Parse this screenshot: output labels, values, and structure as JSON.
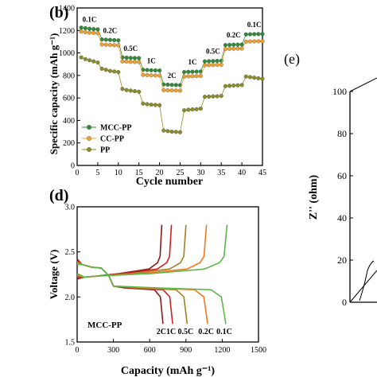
{
  "panels": {
    "b": {
      "label": "(b)"
    },
    "d": {
      "label": "(d)"
    },
    "e": {
      "label": "(e)"
    }
  },
  "chart_data": [
    {
      "type": "scatter",
      "panel": "(b)",
      "xlabel": "Cycle number",
      "ylabel": "Specific capacity (mAh g⁻¹)",
      "xlim": [
        0,
        45
      ],
      "ylim": [
        0,
        1400
      ],
      "xticks": [
        0,
        5,
        10,
        15,
        20,
        25,
        30,
        35,
        40,
        45
      ],
      "yticks": [
        0,
        200,
        400,
        600,
        800,
        1000,
        1200,
        1400
      ],
      "x": [
        1,
        2,
        3,
        4,
        5,
        6,
        7,
        8,
        9,
        10,
        11,
        12,
        13,
        14,
        15,
        16,
        17,
        18,
        19,
        20,
        21,
        22,
        23,
        24,
        25,
        26,
        27,
        28,
        29,
        30,
        31,
        32,
        33,
        34,
        35,
        36,
        37,
        38,
        39,
        40,
        41,
        42,
        43,
        44,
        45
      ],
      "series": [
        {
          "name": "MCC-PP",
          "color": "#2e8b3a",
          "values": [
            1225,
            1220,
            1215,
            1212,
            1210,
            1120,
            1118,
            1116,
            1114,
            1112,
            960,
            958,
            956,
            955,
            954,
            850,
            848,
            846,
            845,
            844,
            720,
            718,
            716,
            715,
            714,
            830,
            832,
            833,
            834,
            835,
            925,
            927,
            928,
            929,
            930,
            1070,
            1072,
            1073,
            1074,
            1075,
            1165,
            1166,
            1167,
            1168,
            1168
          ]
        },
        {
          "name": "CC-PP",
          "color": "#f0a030",
          "values": [
            1190,
            1185,
            1180,
            1178,
            1175,
            1075,
            1073,
            1071,
            1069,
            1068,
            925,
            923,
            921,
            920,
            919,
            805,
            803,
            801,
            800,
            799,
            670,
            668,
            667,
            666,
            665,
            790,
            792,
            793,
            794,
            795,
            890,
            892,
            893,
            894,
            895,
            1035,
            1037,
            1038,
            1039,
            1040,
            1100,
            1102,
            1103,
            1104,
            1105
          ]
        },
        {
          "name": "PP",
          "color": "#8b8b2a",
          "values": [
            960,
            945,
            935,
            925,
            915,
            860,
            850,
            840,
            835,
            830,
            680,
            670,
            665,
            660,
            655,
            550,
            545,
            540,
            538,
            535,
            310,
            305,
            300,
            298,
            295,
            490,
            495,
            498,
            500,
            505,
            610,
            612,
            614,
            615,
            618,
            705,
            708,
            710,
            712,
            715,
            790,
            785,
            780,
            775,
            770
          ]
        }
      ],
      "annotations": [
        "0.1C",
        "0.2C",
        "0.5C",
        "1C",
        "2C",
        "1C",
        "0.5C",
        "0.2C",
        "0.1C"
      ],
      "legend": "bottom-left"
    },
    {
      "type": "line",
      "panel": "(d)",
      "xlabel": "Capacity (mAh g⁻¹)",
      "ylabel": "Voltage (V)",
      "xlim": [
        0,
        1500
      ],
      "ylim": [
        1.5,
        3.0
      ],
      "xticks": [
        0,
        300,
        600,
        900,
        1200,
        1500
      ],
      "yticks": [
        1.5,
        2.0,
        2.5,
        3.0
      ],
      "annotation": "MCC-PP",
      "series": [
        {
          "name": "2C",
          "color": "#8b1a1a",
          "discharge_end": 710,
          "charge_end": 700
        },
        {
          "name": "1C",
          "color": "#d02020",
          "discharge_end": 790,
          "charge_end": 780
        },
        {
          "name": "0.5C",
          "color": "#a08020",
          "discharge_end": 910,
          "charge_end": 900
        },
        {
          "name": "0.2C",
          "color": "#f07820",
          "discharge_end": 1080,
          "charge_end": 1070
        },
        {
          "name": "0.1C",
          "color": "#5ab84a",
          "discharge_end": 1230,
          "charge_end": 1240
        }
      ]
    },
    {
      "type": "scatter",
      "panel": "(e)",
      "ylabel": "Z'' (ohm)",
      "ylim": [
        0,
        100
      ],
      "yticks": [
        0,
        20,
        40,
        60,
        80,
        100
      ]
    }
  ]
}
